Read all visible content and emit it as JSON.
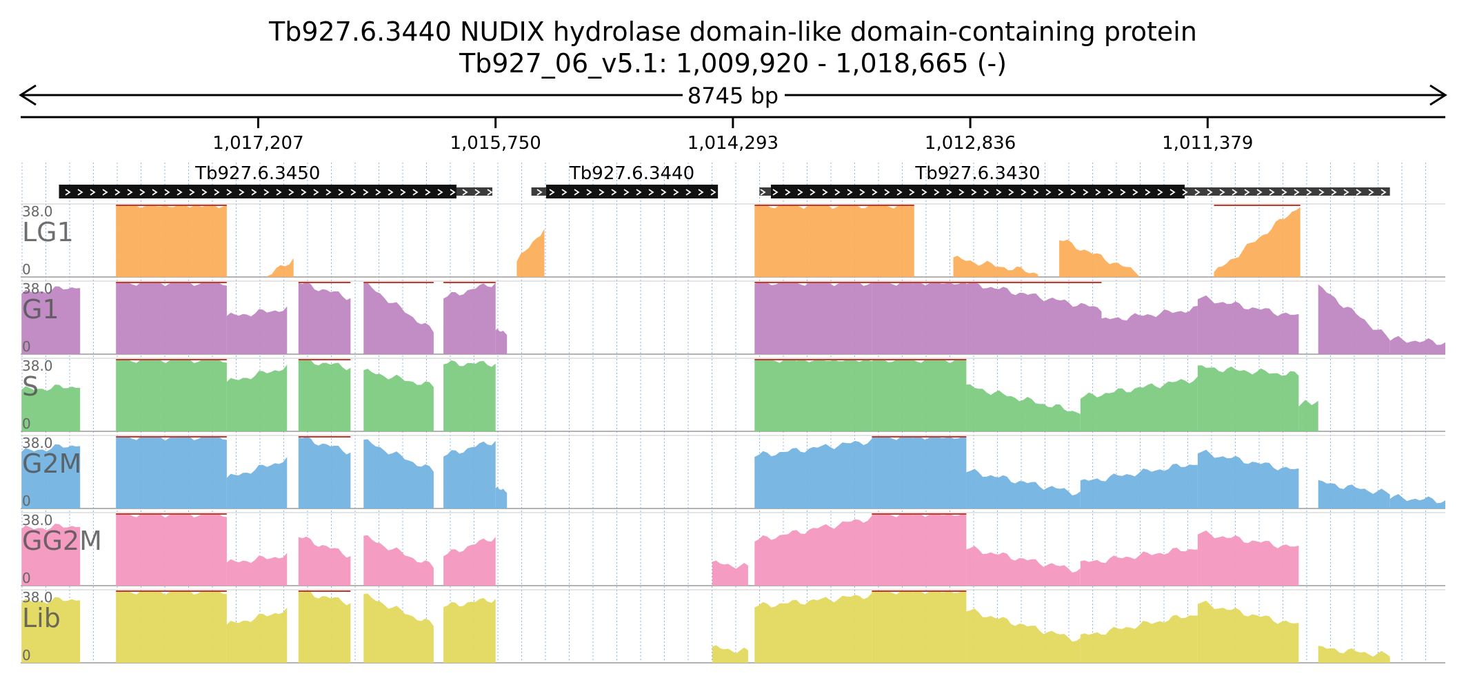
{
  "header": {
    "title": "Tb927.6.3440  NUDIX hydrolase domain-like domain-containing protein",
    "locus": "Tb927_06_v5.1: 1,009,920 - 1,018,665 (-)",
    "span_label": "8745 bp"
  },
  "chart_data": {
    "type": "area",
    "strand": "-",
    "x_range": [
      1009920,
      1018665
    ],
    "ticks": [
      {
        "value": 1017207,
        "label": "1,017,207"
      },
      {
        "value": 1015750,
        "label": "1,015,750"
      },
      {
        "value": 1014293,
        "label": "1,014,293"
      },
      {
        "value": 1012836,
        "label": "1,012,836"
      },
      {
        "value": 1011379,
        "label": "1,011,379"
      }
    ],
    "genes": [
      {
        "name": "Tb927.6.3450",
        "cds": [
          1015990,
          1018430
        ],
        "utr": [
          1015770,
          1015990
        ]
      },
      {
        "name": "Tb927.6.3440",
        "cds": [
          1014385,
          1015440
        ],
        "utr": [
          1015440,
          1015530
        ]
      },
      {
        "name": "Tb927.6.3430",
        "cds": [
          1011520,
          1014060
        ],
        "utr": [
          1010260,
          1011520
        ],
        "utr5": [
          1014060,
          1014130
        ]
      }
    ],
    "y_range": [
      0,
      38.0
    ],
    "y_max_label": "38.0",
    "y_min_label": "0",
    "tracks": [
      {
        "name": "LG1",
        "color": "#fbae5a",
        "segments": [
          [
            1018080,
            38,
            1017400,
            38
          ],
          [
            1017150,
            0,
            1016990,
            10
          ],
          [
            1015620,
            8,
            1015450,
            26
          ],
          [
            1014160,
            38,
            1013180,
            38
          ],
          [
            1012940,
            10,
            1012420,
            2
          ],
          [
            1012290,
            20,
            1011800,
            2
          ],
          [
            1011340,
            2,
            1010810,
            38
          ]
        ]
      },
      {
        "name": "G1",
        "color": "#bf87c1",
        "segments": [
          [
            1018660,
            32,
            1018300,
            36
          ],
          [
            1018080,
            38,
            1017400,
            38
          ],
          [
            1017400,
            20,
            1017030,
            24
          ],
          [
            1016960,
            38,
            1016640,
            30
          ],
          [
            1016560,
            38,
            1016130,
            12
          ],
          [
            1016070,
            30,
            1015750,
            38
          ],
          [
            1015750,
            12,
            1015680,
            12
          ],
          [
            1014160,
            38,
            1013440,
            38
          ],
          [
            1013440,
            38,
            1012860,
            38
          ],
          [
            1012860,
            38,
            1012030,
            24
          ],
          [
            1012030,
            18,
            1011440,
            24
          ],
          [
            1011440,
            30,
            1010820,
            20
          ],
          [
            1010700,
            36,
            1010260,
            8
          ],
          [
            1010260,
            8,
            1009920,
            6
          ]
        ]
      },
      {
        "name": "S",
        "color": "#7ecb82",
        "segments": [
          [
            1018660,
            22,
            1018300,
            24
          ],
          [
            1018080,
            38,
            1017400,
            38
          ],
          [
            1017400,
            26,
            1017030,
            34
          ],
          [
            1016960,
            38,
            1016640,
            34
          ],
          [
            1016560,
            32,
            1016130,
            24
          ],
          [
            1016070,
            36,
            1015750,
            36
          ],
          [
            1014160,
            38,
            1013440,
            38
          ],
          [
            1013440,
            38,
            1012860,
            38
          ],
          [
            1012860,
            24,
            1012160,
            10
          ],
          [
            1012160,
            18,
            1011440,
            28
          ],
          [
            1011440,
            34,
            1010820,
            30
          ],
          [
            1010820,
            14,
            1010700,
            16
          ]
        ]
      },
      {
        "name": "G2M",
        "color": "#73b3e0",
        "segments": [
          [
            1018660,
            30,
            1018300,
            34
          ],
          [
            1018080,
            38,
            1017400,
            38
          ],
          [
            1017400,
            16,
            1017030,
            26
          ],
          [
            1016960,
            38,
            1016640,
            30
          ],
          [
            1016560,
            36,
            1016130,
            20
          ],
          [
            1016070,
            28,
            1015750,
            36
          ],
          [
            1015750,
            10,
            1015680,
            10
          ],
          [
            1014160,
            28,
            1013440,
            36
          ],
          [
            1013440,
            38,
            1012860,
            38
          ],
          [
            1012860,
            20,
            1012160,
            8
          ],
          [
            1012160,
            14,
            1011440,
            24
          ],
          [
            1011440,
            30,
            1010820,
            20
          ],
          [
            1010700,
            14,
            1010260,
            8
          ],
          [
            1010260,
            6,
            1009920,
            4
          ]
        ]
      },
      {
        "name": "GG2M",
        "color": "#f497c0",
        "segments": [
          [
            1018660,
            30,
            1018300,
            32
          ],
          [
            1018080,
            38,
            1017400,
            38
          ],
          [
            1017400,
            12,
            1017030,
            16
          ],
          [
            1016960,
            26,
            1016640,
            16
          ],
          [
            1016560,
            26,
            1016130,
            10
          ],
          [
            1016070,
            16,
            1015750,
            26
          ],
          [
            1014420,
            12,
            1014200,
            10
          ],
          [
            1014160,
            24,
            1013440,
            36
          ],
          [
            1013440,
            38,
            1012860,
            38
          ],
          [
            1012860,
            20,
            1012160,
            8
          ],
          [
            1012160,
            12,
            1011440,
            20
          ],
          [
            1011440,
            28,
            1010820,
            20
          ]
        ]
      },
      {
        "name": "Lib",
        "color": "#e2d95e",
        "segments": [
          [
            1018660,
            32,
            1018300,
            34
          ],
          [
            1018080,
            38,
            1017400,
            38
          ],
          [
            1017400,
            20,
            1017030,
            28
          ],
          [
            1016960,
            38,
            1016640,
            32
          ],
          [
            1016560,
            36,
            1016130,
            20
          ],
          [
            1016070,
            30,
            1015750,
            34
          ],
          [
            1014420,
            8,
            1014200,
            6
          ],
          [
            1014160,
            30,
            1013440,
            36
          ],
          [
            1013440,
            38,
            1012860,
            38
          ],
          [
            1012860,
            28,
            1012160,
            12
          ],
          [
            1012160,
            14,
            1011440,
            26
          ],
          [
            1011440,
            32,
            1010820,
            20
          ],
          [
            1010700,
            8,
            1010260,
            4
          ]
        ]
      }
    ]
  }
}
